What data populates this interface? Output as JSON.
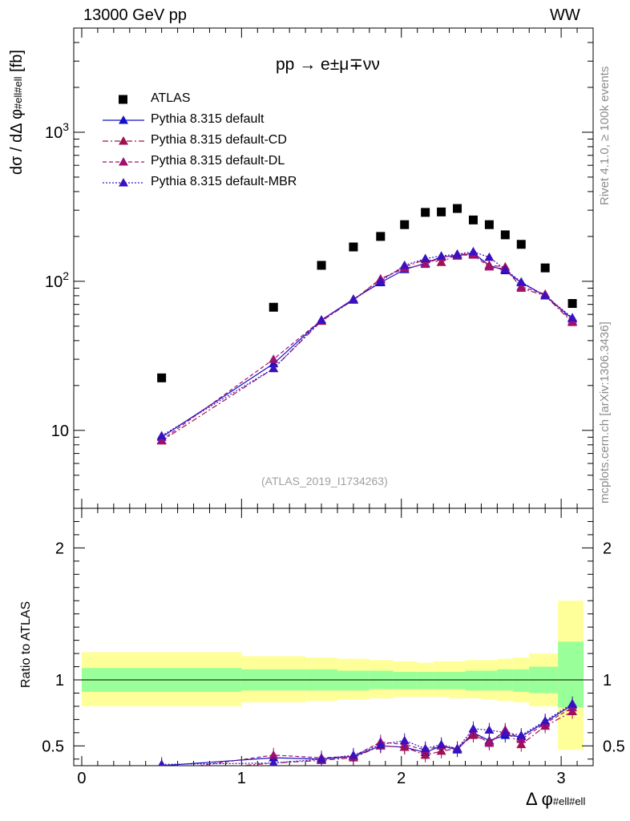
{
  "header": {
    "energy": "13000 GeV pp",
    "process": "WW"
  },
  "side_labels": {
    "rivet": "Rivet 4.1.0, ≥ 100k events",
    "mcplots": "mcplots.cern.ch [arXiv:1306.3436]"
  },
  "process_label": "pp → e±μ∓νν",
  "analysis_label": "(ATLAS_2019_I1734263)",
  "colors": {
    "data": "#000000",
    "default": "#1010c8",
    "cd": "#a01050",
    "dl": "#a01070",
    "mbr": "#3a10c0",
    "band_yellow": "#ffff99",
    "band_green": "#99ff99"
  },
  "chart_data": [
    {
      "type": "scatter",
      "title": "pp → e±μ∓νν",
      "ylabel": "dσ / dΔφ_#ell#ell [fb]",
      "xlabel": "Δφ_#ell#ell",
      "yscale": "log",
      "ylim": [
        3,
        5000
      ],
      "xlim": [
        -0.05,
        3.2
      ],
      "ytick_labels": [
        "10",
        "10^2",
        "10^3"
      ],
      "x": [
        0.5,
        1.2,
        1.5,
        1.7,
        1.87,
        2.02,
        2.15,
        2.25,
        2.35,
        2.45,
        2.55,
        2.65,
        2.75,
        2.9,
        3.07
      ],
      "series": [
        {
          "name": "ATLAS",
          "marker": "square",
          "values": [
            22.5,
            67,
            128,
            170,
            200,
            240,
            290,
            292,
            308,
            258,
            240,
            205,
            177,
            123,
            71
          ]
        },
        {
          "name": "Pythia 8.315 default",
          "style": "solid",
          "values": [
            9.0,
            28,
            55,
            76,
            98,
            120,
            132,
            146,
            148,
            155,
            128,
            118,
            98,
            80,
            56
          ]
        },
        {
          "name": "Pythia 8.315 default-CD",
          "style": "dashdot",
          "values": [
            8.5,
            26,
            54,
            75,
            103,
            125,
            140,
            134,
            152,
            152,
            128,
            125,
            90,
            80,
            53
          ]
        },
        {
          "name": "Pythia 8.315 default-DL",
          "style": "dashed",
          "values": [
            8.6,
            30,
            55,
            75,
            104,
            122,
            130,
            145,
            150,
            150,
            125,
            121,
            92,
            82,
            54
          ]
        },
        {
          "name": "Pythia 8.315 default-MBR",
          "style": "dotted",
          "values": [
            9.2,
            26,
            55,
            75,
            100,
            128,
            142,
            148,
            152,
            158,
            145,
            120,
            99,
            80,
            57
          ]
        }
      ]
    },
    {
      "type": "scatter",
      "ylabel": "Ratio to ATLAS",
      "xlabel": "Δφ_#ell#ell",
      "ylim": [
        0.35,
        2.3
      ],
      "xlim": [
        -0.05,
        3.2
      ],
      "ytick_labels": [
        "0.5",
        "1",
        "2"
      ],
      "xtick_labels": [
        "0",
        "1",
        "2",
        "3"
      ],
      "bands": [
        {
          "x0": 0.0,
          "x1": 1.0,
          "green": [
            0.91,
            1.09
          ],
          "yellow": [
            0.8,
            1.21
          ]
        },
        {
          "x0": 1.0,
          "x1": 1.4,
          "green": [
            0.92,
            1.08
          ],
          "yellow": [
            0.83,
            1.18
          ]
        },
        {
          "x0": 1.4,
          "x1": 1.6,
          "green": [
            0.92,
            1.08
          ],
          "yellow": [
            0.84,
            1.17
          ]
        },
        {
          "x0": 1.6,
          "x1": 1.8,
          "green": [
            0.92,
            1.07
          ],
          "yellow": [
            0.85,
            1.16
          ]
        },
        {
          "x0": 1.8,
          "x1": 1.95,
          "green": [
            0.93,
            1.07
          ],
          "yellow": [
            0.86,
            1.15
          ]
        },
        {
          "x0": 1.95,
          "x1": 2.1,
          "green": [
            0.93,
            1.06
          ],
          "yellow": [
            0.87,
            1.14
          ]
        },
        {
          "x0": 2.1,
          "x1": 2.2,
          "green": [
            0.93,
            1.06
          ],
          "yellow": [
            0.87,
            1.13
          ]
        },
        {
          "x0": 2.2,
          "x1": 2.3,
          "green": [
            0.93,
            1.06
          ],
          "yellow": [
            0.87,
            1.14
          ]
        },
        {
          "x0": 2.3,
          "x1": 2.4,
          "green": [
            0.93,
            1.06
          ],
          "yellow": [
            0.86,
            1.14
          ]
        },
        {
          "x0": 2.4,
          "x1": 2.5,
          "green": [
            0.92,
            1.07
          ],
          "yellow": [
            0.86,
            1.15
          ]
        },
        {
          "x0": 2.5,
          "x1": 2.6,
          "green": [
            0.92,
            1.07
          ],
          "yellow": [
            0.85,
            1.15
          ]
        },
        {
          "x0": 2.6,
          "x1": 2.7,
          "green": [
            0.92,
            1.08
          ],
          "yellow": [
            0.84,
            1.16
          ]
        },
        {
          "x0": 2.7,
          "x1": 2.8,
          "green": [
            0.91,
            1.08
          ],
          "yellow": [
            0.83,
            1.17
          ]
        },
        {
          "x0": 2.8,
          "x1": 2.98,
          "green": [
            0.9,
            1.1
          ],
          "yellow": [
            0.8,
            1.2
          ]
        },
        {
          "x0": 2.98,
          "x1": 3.14,
          "green": [
            0.79,
            1.29
          ],
          "yellow": [
            0.47,
            1.6
          ]
        }
      ],
      "x": [
        0.5,
        1.2,
        1.5,
        1.7,
        1.87,
        2.02,
        2.15,
        2.25,
        2.35,
        2.45,
        2.55,
        2.65,
        2.75,
        2.9,
        3.07
      ],
      "series": [
        {
          "name": "Pythia 8.315 default",
          "values": [
            0.35,
            0.41,
            0.4,
            0.42,
            0.5,
            0.49,
            0.45,
            0.5,
            0.47,
            0.6,
            0.54,
            0.58,
            0.57,
            0.68,
            0.81
          ]
        },
        {
          "name": "Pythia 8.315 default-CD",
          "values": [
            0.3,
            0.37,
            0.39,
            0.41,
            0.5,
            0.49,
            0.43,
            0.46,
            0.48,
            0.58,
            0.53,
            0.61,
            0.51,
            0.65,
            0.76
          ]
        },
        {
          "name": "Pythia 8.315 default-DL",
          "values": [
            0.31,
            0.43,
            0.41,
            0.42,
            0.53,
            0.51,
            0.47,
            0.5,
            0.48,
            0.6,
            0.52,
            0.62,
            0.55,
            0.67,
            0.79
          ]
        },
        {
          "name": "Pythia 8.315 default-MBR",
          "values": [
            0.36,
            0.37,
            0.4,
            0.43,
            0.51,
            0.54,
            0.48,
            0.51,
            0.48,
            0.63,
            0.62,
            0.6,
            0.58,
            0.69,
            0.82
          ]
        }
      ]
    }
  ]
}
